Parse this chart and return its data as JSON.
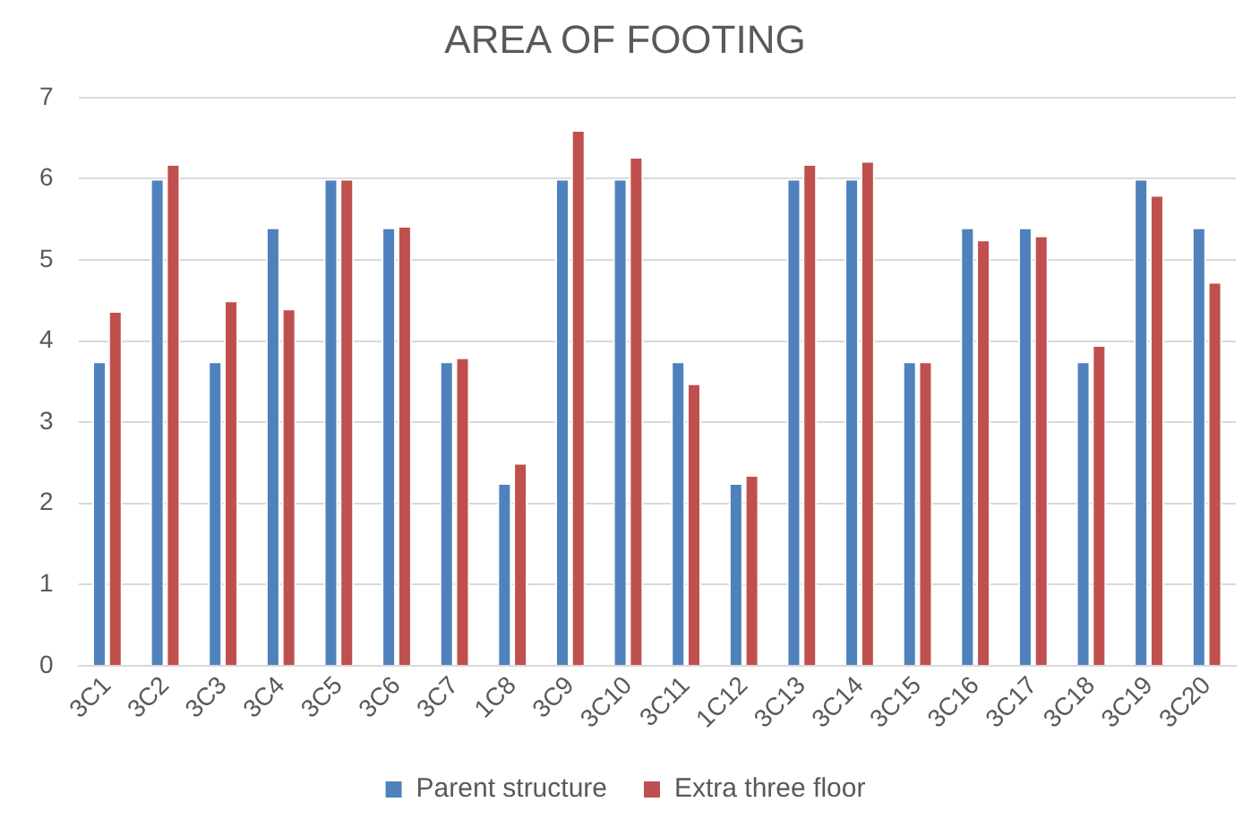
{
  "chart_data": {
    "type": "bar",
    "title": "AREA OF FOOTING",
    "categories": [
      "3C1",
      "3C2",
      "3C3",
      "3C4",
      "3C5",
      "3C6",
      "3C7",
      "1C8",
      "3C9",
      "3C10",
      "3C11",
      "1C12",
      "3C13",
      "3C14",
      "3C15",
      "3C16",
      "3C17",
      "3C18",
      "3C19",
      "3C20"
    ],
    "series": [
      {
        "name": "Parent structure",
        "color": "#4f81bd",
        "values": [
          3.75,
          6,
          3.75,
          5.4,
          6,
          5.4,
          3.75,
          2.25,
          6,
          6,
          3.75,
          2.25,
          6,
          6,
          3.75,
          5.4,
          5.4,
          3.75,
          6,
          5.4
        ]
      },
      {
        "name": "Extra three floor",
        "color": "#c0504d",
        "values": [
          4.37,
          6.18,
          4.5,
          4.4,
          6,
          5.42,
          3.8,
          2.5,
          6.6,
          6.27,
          3.48,
          2.35,
          6.18,
          6.22,
          3.75,
          5.25,
          5.3,
          3.95,
          5.8,
          4.73
        ]
      }
    ],
    "ylim": [
      0,
      7
    ],
    "yticks": [
      0,
      1,
      2,
      3,
      4,
      5,
      6,
      7
    ],
    "grid": "y",
    "legend": "bottom"
  }
}
